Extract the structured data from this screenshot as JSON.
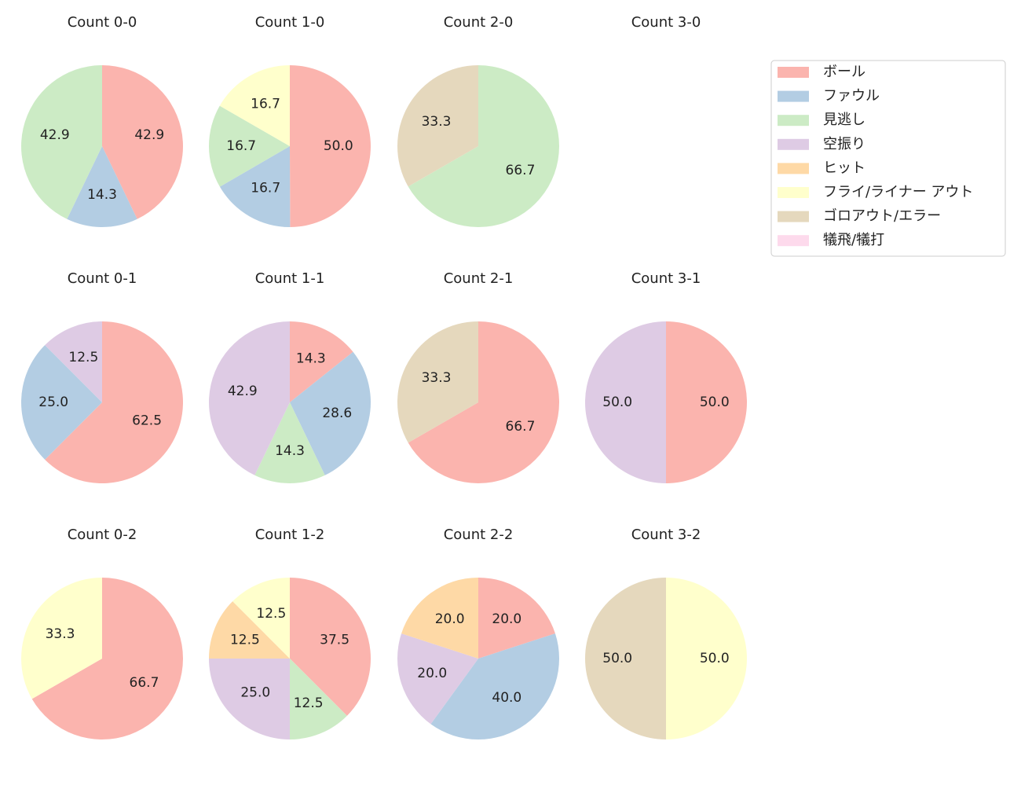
{
  "chart_data": [
    {
      "type": "pie",
      "title": "Count 0-0",
      "values": [
        42.9,
        14.3,
        42.9
      ],
      "value_labels": [
        "42.9",
        "14.3",
        "42.9"
      ],
      "colors": [
        "#fbb4ae",
        "#b3cde3",
        "#ccebc5"
      ]
    },
    {
      "type": "pie",
      "title": "Count 1-0",
      "values": [
        50.0,
        16.7,
        16.7,
        16.7
      ],
      "value_labels": [
        "50.0",
        "16.7",
        "16.7",
        "16.7"
      ],
      "colors": [
        "#fbb4ae",
        "#b3cde3",
        "#ccebc5",
        "#ffffcc"
      ]
    },
    {
      "type": "pie",
      "title": "Count 2-0",
      "values": [
        66.7,
        33.3
      ],
      "value_labels": [
        "66.7",
        "33.3"
      ],
      "colors": [
        "#ccebc5",
        "#e5d8bd"
      ]
    },
    {
      "type": "pie",
      "title": "Count 3-0",
      "values": [],
      "value_labels": [],
      "colors": []
    },
    {
      "type": "pie",
      "title": "Count 0-1",
      "values": [
        62.5,
        25.0,
        12.5
      ],
      "value_labels": [
        "62.5",
        "25.0",
        "12.5"
      ],
      "colors": [
        "#fbb4ae",
        "#b3cde3",
        "#decbe4"
      ]
    },
    {
      "type": "pie",
      "title": "Count 1-1",
      "values": [
        14.3,
        28.6,
        14.3,
        42.9
      ],
      "value_labels": [
        "14.3",
        "28.6",
        "14.3",
        "42.9"
      ],
      "colors": [
        "#fbb4ae",
        "#b3cde3",
        "#ccebc5",
        "#decbe4"
      ]
    },
    {
      "type": "pie",
      "title": "Count 2-1",
      "values": [
        66.7,
        33.3
      ],
      "value_labels": [
        "66.7",
        "33.3"
      ],
      "colors": [
        "#fbb4ae",
        "#e5d8bd"
      ]
    },
    {
      "type": "pie",
      "title": "Count 3-1",
      "values": [
        50.0,
        50.0
      ],
      "value_labels": [
        "50.0",
        "50.0"
      ],
      "colors": [
        "#fbb4ae",
        "#decbe4"
      ]
    },
    {
      "type": "pie",
      "title": "Count 0-2",
      "values": [
        66.7,
        33.3
      ],
      "value_labels": [
        "66.7",
        "33.3"
      ],
      "colors": [
        "#fbb4ae",
        "#ffffcc"
      ]
    },
    {
      "type": "pie",
      "title": "Count 1-2",
      "values": [
        37.5,
        12.5,
        25.0,
        12.5,
        12.5
      ],
      "value_labels": [
        "37.5",
        "12.5",
        "25.0",
        "12.5",
        "12.5"
      ],
      "colors": [
        "#fbb4ae",
        "#ccebc5",
        "#decbe4",
        "#fed9a6",
        "#ffffcc"
      ]
    },
    {
      "type": "pie",
      "title": "Count 2-2",
      "values": [
        20.0,
        40.0,
        20.0,
        20.0
      ],
      "value_labels": [
        "20.0",
        "40.0",
        "20.0",
        "20.0"
      ],
      "colors": [
        "#fbb4ae",
        "#b3cde3",
        "#decbe4",
        "#fed9a6"
      ]
    },
    {
      "type": "pie",
      "title": "Count 3-2",
      "values": [
        50.0,
        50.0
      ],
      "value_labels": [
        "50.0",
        "50.0"
      ],
      "colors": [
        "#ffffcc",
        "#e5d8bd"
      ]
    }
  ],
  "legend": {
    "labels": [
      "ボール",
      "ファウル",
      "見逃し",
      "空振り",
      "ヒット",
      "フライ/ライナー アウト",
      "ゴロアウト/エラー",
      "犠飛/犠打"
    ],
    "colors": [
      "#fbb4ae",
      "#b3cde3",
      "#ccebc5",
      "#decbe4",
      "#fed9a6",
      "#ffffcc",
      "#e5d8bd",
      "#fddaec"
    ]
  }
}
